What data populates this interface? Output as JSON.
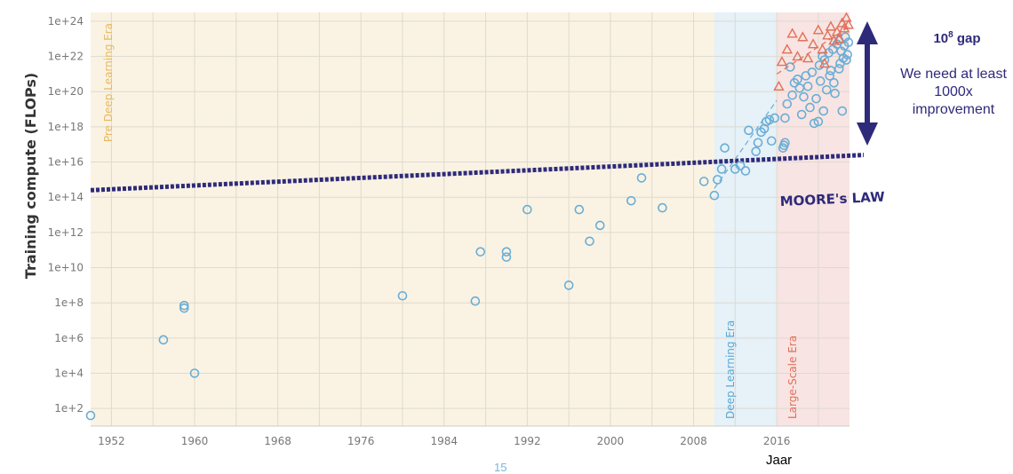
{
  "chart_data": {
    "type": "scatter",
    "ylabel": "Training compute (FLOPs)",
    "xlabel": "Jaar",
    "yscale": "log",
    "xlim": [
      1950,
      2023
    ],
    "ylim_log10": [
      1,
      24.5
    ],
    "x_ticks": [
      1952,
      1960,
      1968,
      1976,
      1984,
      1992,
      2000,
      2008,
      2016
    ],
    "y_ticks": [
      "1e+2",
      "1e+4",
      "1e+6",
      "1e+8",
      "1e+10",
      "1e+12",
      "1e+14",
      "1e+16",
      "1e+18",
      "1e+20",
      "1e+22",
      "1e+24"
    ],
    "grid": true,
    "eras": [
      {
        "name": "Pre Deep Learning Era",
        "x_start": 1950,
        "x_end": 2010,
        "color": "#faf3e3",
        "label_color": "#e8b860"
      },
      {
        "name": "Deep Learning Era",
        "x_start": 2010,
        "x_end": 2016,
        "color": "#e6f1f8",
        "label_color": "#5aa8d6"
      },
      {
        "name": "Large-Scale Era",
        "x_start": 2016,
        "x_end": 2023,
        "color": "#f8e4e2",
        "label_color": "#e0705a"
      }
    ],
    "series": [
      {
        "marker": "circle",
        "color": "#6aaed6",
        "points": [
          [
            1950,
            1.6
          ],
          [
            1957,
            5.9
          ],
          [
            1959,
            7.7
          ],
          [
            1959,
            7.85
          ],
          [
            1960,
            4
          ],
          [
            1980,
            8.4
          ],
          [
            1987,
            8.1
          ],
          [
            1987.5,
            10.9
          ],
          [
            1990,
            10.6
          ],
          [
            1990,
            10.9
          ],
          [
            1992,
            13.3
          ],
          [
            1996,
            9
          ],
          [
            1997,
            13.3
          ],
          [
            1998,
            11.5
          ],
          [
            1999,
            12.4
          ],
          [
            2002,
            13.8
          ],
          [
            2003,
            15.1
          ],
          [
            2005,
            13.4
          ],
          [
            2009,
            14.9
          ],
          [
            2010,
            14.1
          ],
          [
            2010.3,
            15
          ],
          [
            2010.7,
            15.6
          ],
          [
            2011,
            16.8
          ],
          [
            2012,
            15.6
          ],
          [
            2012.5,
            15.8
          ],
          [
            2013,
            15.5
          ],
          [
            2013.3,
            17.8
          ],
          [
            2014,
            16.6
          ],
          [
            2014.2,
            17.1
          ],
          [
            2014.5,
            17.7
          ],
          [
            2014.8,
            17.9
          ],
          [
            2015,
            18.3
          ],
          [
            2015.3,
            18.4
          ],
          [
            2015.5,
            17.2
          ],
          [
            2015.8,
            18.5
          ],
          [
            2016.6,
            16.8
          ],
          [
            2016.7,
            16.95
          ],
          [
            2016.8,
            17.1
          ],
          [
            2016.8,
            18.5
          ],
          [
            2017,
            19.3
          ],
          [
            2017.3,
            21.4
          ],
          [
            2017.5,
            19.8
          ],
          [
            2017.7,
            20.5
          ],
          [
            2018,
            20.7
          ],
          [
            2018.2,
            20.2
          ],
          [
            2018.4,
            18.7
          ],
          [
            2018.6,
            19.7
          ],
          [
            2018.8,
            20.9
          ],
          [
            2019,
            20.3
          ],
          [
            2019.2,
            19.1
          ],
          [
            2019.4,
            21.1
          ],
          [
            2019.6,
            18.2
          ],
          [
            2019.8,
            19.6
          ],
          [
            2020,
            18.3
          ],
          [
            2020.1,
            21.5
          ],
          [
            2020.2,
            20.6
          ],
          [
            2020.4,
            22.0
          ],
          [
            2020.5,
            18.9
          ],
          [
            2020.6,
            21.8
          ],
          [
            2020.8,
            20.1
          ],
          [
            2021,
            22.2
          ],
          [
            2021.1,
            20.9
          ],
          [
            2021.2,
            21.2
          ],
          [
            2021.4,
            22.4
          ],
          [
            2021.5,
            20.5
          ],
          [
            2021.6,
            19.9
          ],
          [
            2021.8,
            22.7
          ],
          [
            2022,
            21.3
          ],
          [
            2022,
            22.9
          ],
          [
            2022.1,
            21.6
          ],
          [
            2022.2,
            22.3
          ],
          [
            2022.3,
            18.9
          ],
          [
            2022.4,
            21.9
          ],
          [
            2022.5,
            22.6
          ],
          [
            2022.6,
            23.1
          ],
          [
            2022.7,
            21.8
          ],
          [
            2022.8,
            22.1
          ],
          [
            2022.9,
            22.8
          ]
        ]
      },
      {
        "marker": "triangle",
        "color": "#e0705a",
        "points": [
          [
            2016.2,
            20.3
          ],
          [
            2016.5,
            21.7
          ],
          [
            2017,
            22.4
          ],
          [
            2017.5,
            23.3
          ],
          [
            2018,
            22.0
          ],
          [
            2018.5,
            23.1
          ],
          [
            2019,
            21.9
          ],
          [
            2019.5,
            22.7
          ],
          [
            2020,
            23.5
          ],
          [
            2020.4,
            22.4
          ],
          [
            2020.6,
            21.6
          ],
          [
            2020.9,
            23.2
          ],
          [
            2021.2,
            23.7
          ],
          [
            2021.5,
            22.9
          ],
          [
            2021.8,
            23.4
          ],
          [
            2022,
            23.0
          ],
          [
            2022.3,
            23.9
          ],
          [
            2022.5,
            23.6
          ],
          [
            2022.7,
            24.2
          ],
          [
            2022.9,
            23.8
          ]
        ]
      }
    ],
    "annotations": {
      "moores_law": {
        "label": "MOORE's LAW",
        "from": [
          1950,
          14.4
        ],
        "to": [
          2023,
          16.4
        ],
        "color": "#2e2a7a"
      },
      "gap_title_base": "10",
      "gap_title_exp": "8",
      "gap_title_suffix": " gap",
      "gap_text": "We need at least 1000x improvement",
      "page_number": "15"
    }
  }
}
